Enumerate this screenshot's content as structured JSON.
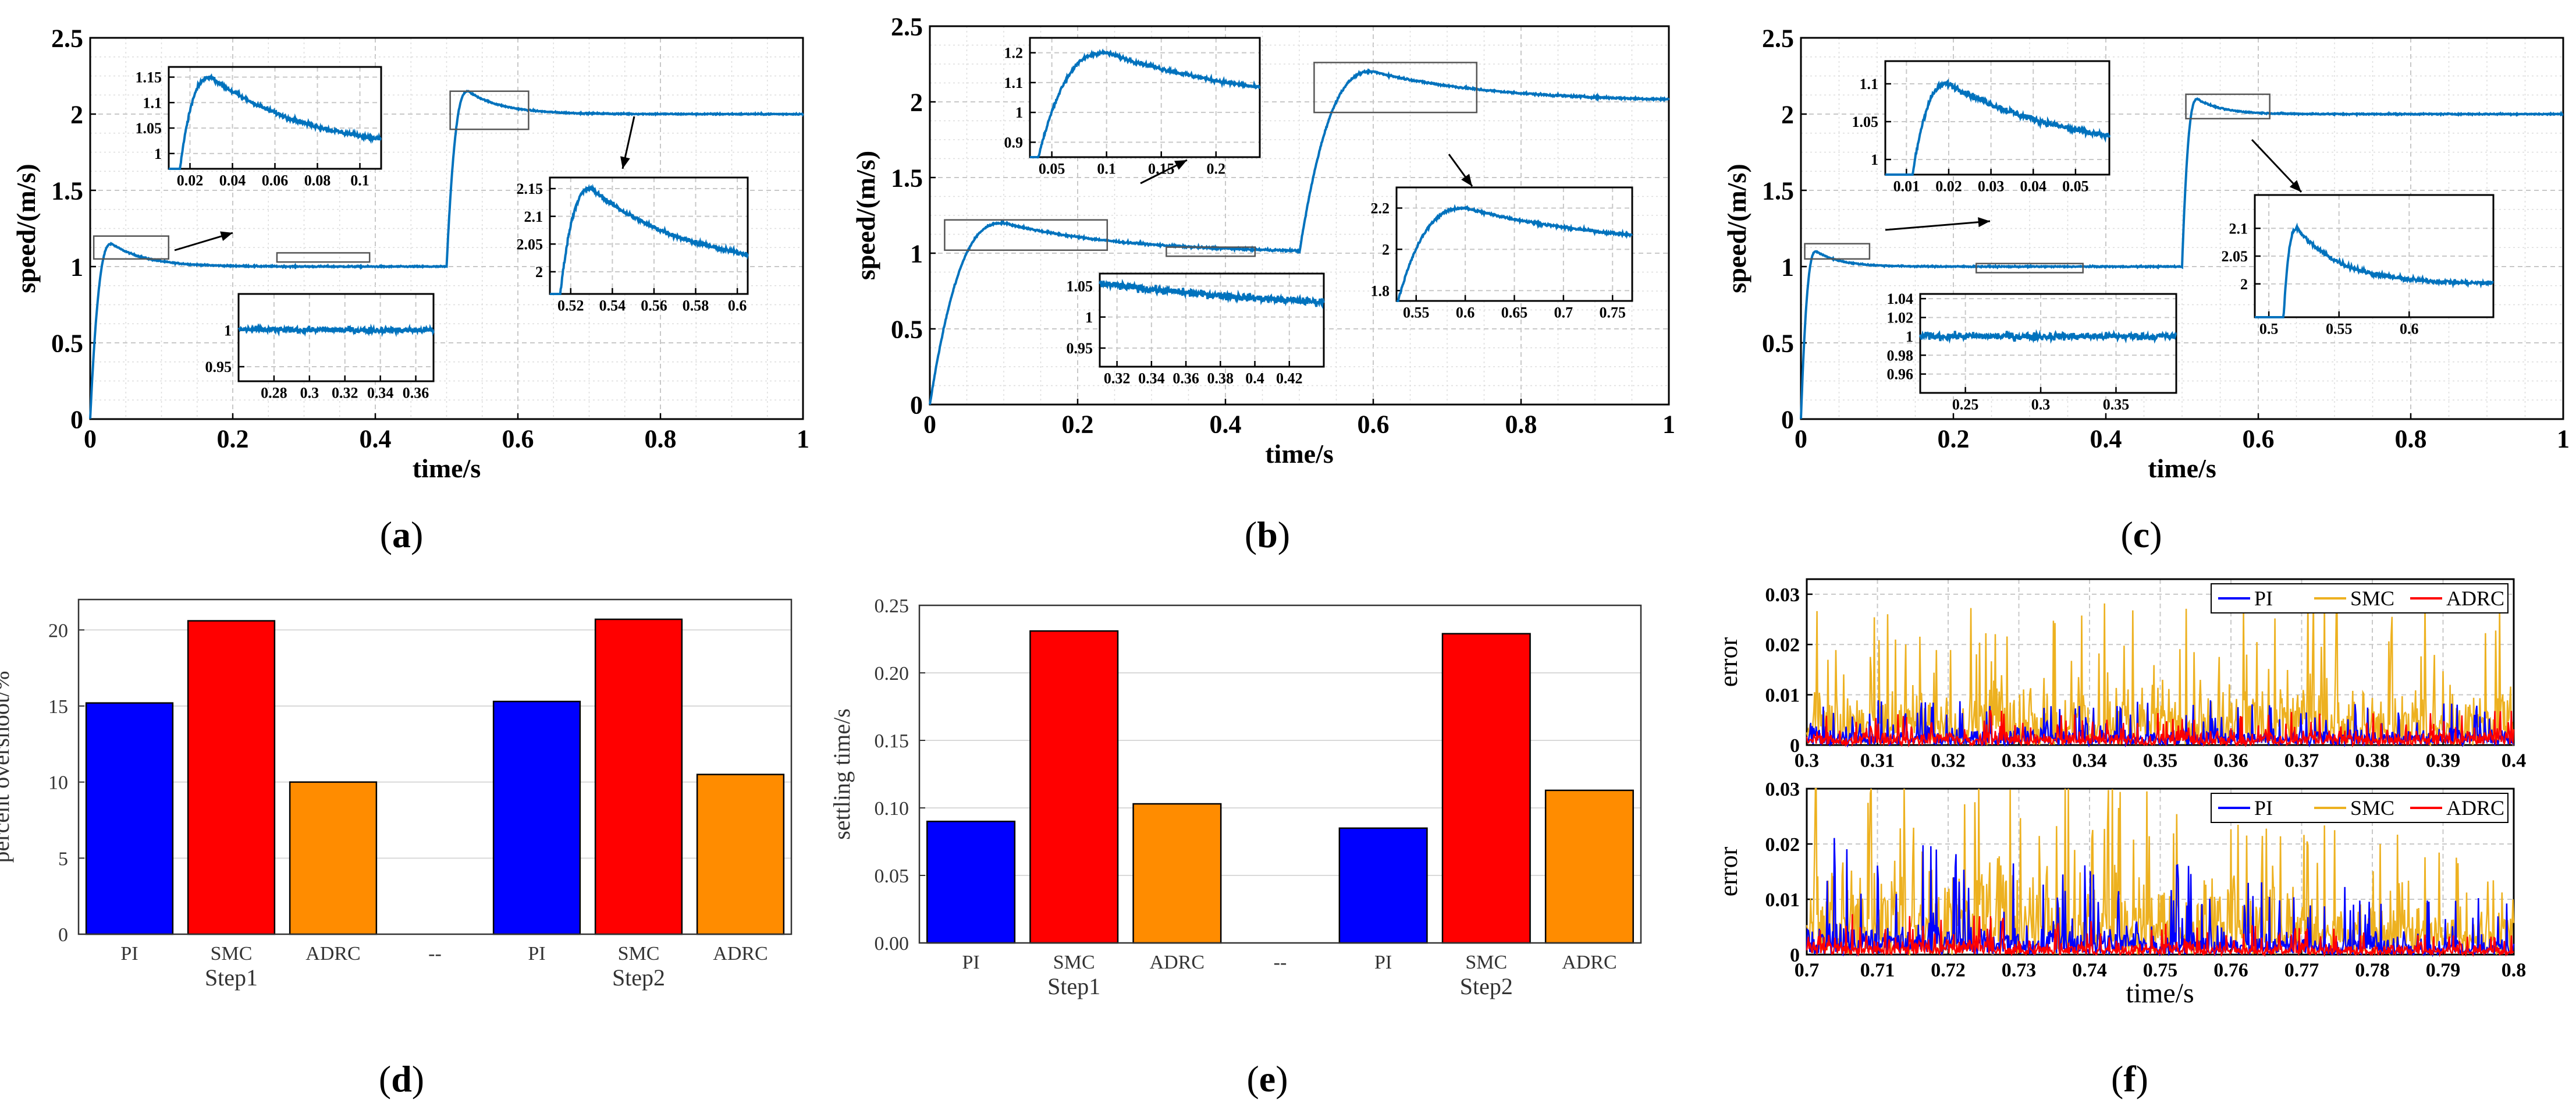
{
  "figure": {
    "panels": [
      {
        "letter": "a",
        "text": "(a)"
      },
      {
        "letter": "b",
        "text": "(b)"
      },
      {
        "letter": "c",
        "text": "(c)"
      },
      {
        "letter": "d",
        "text": "(d)"
      },
      {
        "letter": "e",
        "text": "(e)"
      },
      {
        "letter": "f",
        "text": "(f)"
      }
    ]
  },
  "colors": {
    "speed_line": "#0072BD",
    "PI": "#0000FF",
    "SMC": "#FF0000",
    "ADRC": "#FF8C00",
    "err_PI": "#0000FF",
    "err_SMC": "#EDB120",
    "err_ADRC": "#FF0000"
  },
  "chart_data": [
    {
      "id": "a",
      "type": "line",
      "title": "",
      "xlabel": "time/s",
      "ylabel": "speed/(m/s)",
      "xlim": [
        0,
        1
      ],
      "ylim": [
        0,
        2.5
      ],
      "xticks": [
        "0",
        "0.2",
        "0.4",
        "0.6",
        "0.8",
        "1"
      ],
      "yticks": [
        "0",
        "0.5",
        "1",
        "1.5",
        "2",
        "2.5"
      ],
      "series": [
        {
          "name": "speed",
          "step1": 1,
          "step2": 2,
          "step_time": 0.5,
          "overshoot1": 1.15,
          "peak_t1": 0.03,
          "overshoot2": 2.15,
          "peak_t2": 0.53,
          "noise": 0.004
        }
      ],
      "insets": [
        {
          "xlim": [
            0.01,
            0.11
          ],
          "ylim": [
            0.97,
            1.17
          ],
          "xticks": [
            "0.02",
            "0.04",
            "0.06",
            "0.08",
            "0.1"
          ],
          "yticks": [
            "1",
            "1.05",
            "1.1",
            "1.15"
          ]
        },
        {
          "xlim": [
            0.26,
            0.37
          ],
          "ylim": [
            0.93,
            1.05
          ],
          "xticks": [
            "0.28",
            "0.3",
            "0.32",
            "0.34",
            "0.36"
          ],
          "yticks": [
            "0.95",
            "1"
          ]
        },
        {
          "xlim": [
            0.51,
            0.605
          ],
          "ylim": [
            1.96,
            2.17
          ],
          "xticks": [
            "0.52",
            "0.54",
            "0.56",
            "0.58",
            "0.6"
          ],
          "yticks": [
            "2",
            "2.05",
            "2.1",
            "2.15"
          ]
        }
      ]
    },
    {
      "id": "b",
      "type": "line",
      "title": "",
      "xlabel": "time/s",
      "ylabel": "speed/(m/s)",
      "xlim": [
        0,
        1
      ],
      "ylim": [
        0,
        2.5
      ],
      "xticks": [
        "0",
        "0.2",
        "0.4",
        "0.6",
        "0.8",
        "1"
      ],
      "yticks": [
        "0",
        "0.5",
        "1",
        "1.5",
        "2",
        "2.5"
      ],
      "series": [
        {
          "name": "speed",
          "step1": 1,
          "step2": 2,
          "step_time": 0.5,
          "overshoot1": 1.2,
          "peak_t1": 0.1,
          "overshoot2": 2.2,
          "peak_t2": 0.6,
          "noise": 0.006
        }
      ],
      "insets": [
        {
          "xlim": [
            0.03,
            0.24
          ],
          "ylim": [
            0.85,
            1.25
          ],
          "xticks": [
            "0.05",
            "0.1",
            "0.15",
            "0.2"
          ],
          "yticks": [
            "0.9",
            "1",
            "1.1",
            "1.2"
          ]
        },
        {
          "xlim": [
            0.31,
            0.44
          ],
          "ylim": [
            0.92,
            1.07
          ],
          "xticks": [
            "0.32",
            "0.34",
            "0.36",
            "0.38",
            "0.4",
            "0.42"
          ],
          "yticks": [
            "0.95",
            "1",
            "1.05"
          ]
        },
        {
          "xlim": [
            0.53,
            0.77
          ],
          "ylim": [
            1.75,
            2.3
          ],
          "xticks": [
            "0.55",
            "0.6",
            "0.65",
            "0.7",
            "0.75"
          ],
          "yticks": [
            "1.8",
            "2",
            "2.2"
          ]
        }
      ]
    },
    {
      "id": "c",
      "type": "line",
      "title": "",
      "xlabel": "time/s",
      "ylabel": "speed/(m/s)",
      "xlim": [
        0,
        1
      ],
      "ylim": [
        0,
        2.5
      ],
      "xticks": [
        "0",
        "0.2",
        "0.4",
        "0.6",
        "0.8",
        "1"
      ],
      "yticks": [
        "0",
        "0.5",
        "1",
        "1.5",
        "2",
        "2.5"
      ],
      "series": [
        {
          "name": "speed",
          "step1": 1,
          "step2": 2,
          "step_time": 0.5,
          "overshoot1": 1.1,
          "peak_t1": 0.02,
          "overshoot2": 2.1,
          "peak_t2": 0.52,
          "noise": 0.004
        }
      ],
      "insets": [
        {
          "xlim": [
            0.005,
            0.058
          ],
          "ylim": [
            0.98,
            1.13
          ],
          "xticks": [
            "0.01",
            "0.02",
            "0.03",
            "0.04",
            "0.05"
          ],
          "yticks": [
            "1",
            "1.05",
            "1.1"
          ]
        },
        {
          "xlim": [
            0.22,
            0.39
          ],
          "ylim": [
            0.94,
            1.045
          ],
          "xticks": [
            "0.25",
            "0.3",
            "0.35"
          ],
          "yticks": [
            "0.96",
            "0.98",
            "1",
            "1.02",
            "1.04"
          ]
        },
        {
          "xlim": [
            0.49,
            0.66
          ],
          "ylim": [
            1.94,
            2.16
          ],
          "xticks": [
            "0.5",
            "0.55",
            "0.6"
          ],
          "yticks": [
            "2",
            "2.05",
            "2.1"
          ]
        }
      ]
    },
    {
      "id": "d",
      "type": "bar",
      "title": "",
      "xlabel": "",
      "ylabel": "percent overshoot/%",
      "ylim": [
        0,
        22
      ],
      "yticks": [
        "0",
        "5",
        "10",
        "15",
        "20"
      ],
      "categories": [
        "PI",
        "SMC",
        "ADRC",
        "--",
        "PI",
        "SMC",
        "ADRC"
      ],
      "groups": [
        "Step1",
        "Step2"
      ],
      "values": [
        15.2,
        20.6,
        10.0,
        null,
        15.3,
        20.7,
        10.5
      ]
    },
    {
      "id": "e",
      "type": "bar",
      "title": "",
      "xlabel": "",
      "ylabel": "settling time/s",
      "ylim": [
        0,
        0.25
      ],
      "yticks": [
        "0.00",
        "0.05",
        "0.10",
        "0.15",
        "0.20",
        "0.25"
      ],
      "categories": [
        "PI",
        "SMC",
        "ADRC",
        "--",
        "PI",
        "SMC",
        "ADRC"
      ],
      "groups": [
        "Step1",
        "Step2"
      ],
      "values": [
        0.09,
        0.231,
        0.103,
        null,
        0.085,
        0.229,
        0.113
      ]
    },
    {
      "id": "f",
      "type": "line",
      "title": "",
      "xlabel": "time/s",
      "ylabel": "error",
      "subplots": [
        {
          "xlim": [
            0.3,
            0.4
          ],
          "ylim": [
            0,
            0.033
          ],
          "xticks": [
            "0.3",
            "0.31",
            "0.32",
            "0.33",
            "0.34",
            "0.35",
            "0.36",
            "0.37",
            "0.38",
            "0.39",
            "0.4"
          ],
          "yticks": [
            "0",
            "0.01",
            "0.02",
            "0.03"
          ],
          "series": [
            {
              "name": "PI",
              "mean": 0.003,
              "max": 0.009
            },
            {
              "name": "SMC",
              "mean": 0.01,
              "max": 0.03
            },
            {
              "name": "ADRC",
              "mean": 0.0025,
              "max": 0.007
            }
          ]
        },
        {
          "xlim": [
            0.7,
            0.8
          ],
          "ylim": [
            0,
            0.03
          ],
          "xticks": [
            "0.7",
            "0.71",
            "0.72",
            "0.73",
            "0.74",
            "0.75",
            "0.76",
            "0.77",
            "0.78",
            "0.79",
            "0.8"
          ],
          "yticks": [
            "0",
            "0.01",
            "0.02",
            "0.03"
          ],
          "series": [
            {
              "name": "PI",
              "mean": 0.004,
              "max": 0.017
            },
            {
              "name": "SMC",
              "mean": 0.012,
              "max": 0.03
            },
            {
              "name": "ADRC",
              "mean": 0.002,
              "max": 0.006
            }
          ]
        }
      ],
      "legend": [
        "PI",
        "SMC",
        "ADRC"
      ]
    }
  ]
}
